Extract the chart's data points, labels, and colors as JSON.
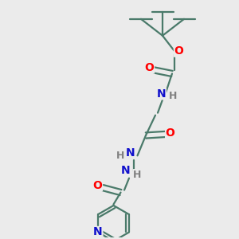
{
  "bg_color": "#ebebeb",
  "bond_color": "#4a7a6a",
  "atom_colors": {
    "O": "#ff0000",
    "N": "#1010cc",
    "H": "#808080",
    "C": "#4a7a6a"
  },
  "figsize": [
    3.0,
    3.0
  ],
  "dpi": 100,
  "xlim": [
    0,
    10
  ],
  "ylim": [
    0,
    10
  ]
}
